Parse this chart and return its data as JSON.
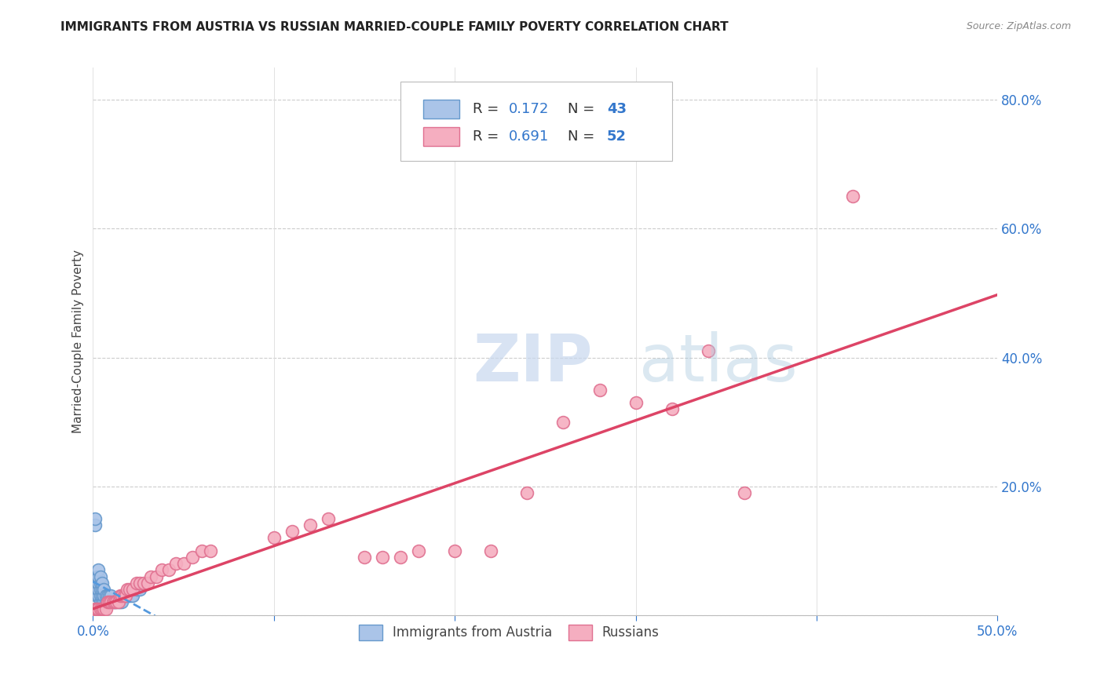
{
  "title": "IMMIGRANTS FROM AUSTRIA VS RUSSIAN MARRIED-COUPLE FAMILY POVERTY CORRELATION CHART",
  "source": "Source: ZipAtlas.com",
  "ylabel": "Married-Couple Family Poverty",
  "xlim": [
    0.0,
    0.5
  ],
  "ylim": [
    0.0,
    0.85
  ],
  "x_ticks": [
    0.0,
    0.1,
    0.2,
    0.3,
    0.4,
    0.5
  ],
  "x_tick_labels": [
    "0.0%",
    "",
    "",
    "",
    "",
    "50.0%"
  ],
  "y_tick_labels_right": [
    "",
    "20.0%",
    "40.0%",
    "60.0%",
    "80.0%"
  ],
  "y_ticks_right": [
    0.0,
    0.2,
    0.4,
    0.6,
    0.8
  ],
  "austria_color": "#aac4e8",
  "austria_edge_color": "#6699cc",
  "russian_color": "#f5aec0",
  "russian_edge_color": "#e07090",
  "austria_R": 0.172,
  "austria_N": 43,
  "russian_R": 0.691,
  "russian_N": 52,
  "trend_austria_color": "#5599dd",
  "trend_russian_color": "#dd4466",
  "legend_label_austria": "Immigrants from Austria",
  "legend_label_russian": "Russians",
  "austria_points": [
    [
      0.001,
      0.14
    ],
    [
      0.001,
      0.15
    ],
    [
      0.002,
      0.03
    ],
    [
      0.002,
      0.04
    ],
    [
      0.002,
      0.05
    ],
    [
      0.002,
      0.06
    ],
    [
      0.003,
      0.03
    ],
    [
      0.003,
      0.04
    ],
    [
      0.003,
      0.05
    ],
    [
      0.003,
      0.06
    ],
    [
      0.003,
      0.07
    ],
    [
      0.004,
      0.02
    ],
    [
      0.004,
      0.03
    ],
    [
      0.004,
      0.04
    ],
    [
      0.004,
      0.05
    ],
    [
      0.004,
      0.06
    ],
    [
      0.005,
      0.02
    ],
    [
      0.005,
      0.03
    ],
    [
      0.005,
      0.04
    ],
    [
      0.005,
      0.05
    ],
    [
      0.006,
      0.02
    ],
    [
      0.006,
      0.03
    ],
    [
      0.006,
      0.04
    ],
    [
      0.007,
      0.02
    ],
    [
      0.007,
      0.03
    ],
    [
      0.008,
      0.02
    ],
    [
      0.008,
      0.03
    ],
    [
      0.009,
      0.02
    ],
    [
      0.009,
      0.03
    ],
    [
      0.01,
      0.02
    ],
    [
      0.01,
      0.03
    ],
    [
      0.011,
      0.02
    ],
    [
      0.012,
      0.02
    ],
    [
      0.013,
      0.02
    ],
    [
      0.014,
      0.02
    ],
    [
      0.015,
      0.02
    ],
    [
      0.016,
      0.02
    ],
    [
      0.018,
      0.03
    ],
    [
      0.019,
      0.03
    ],
    [
      0.021,
      0.03
    ],
    [
      0.022,
      0.03
    ],
    [
      0.024,
      0.04
    ],
    [
      0.026,
      0.04
    ]
  ],
  "russian_points": [
    [
      0.001,
      0.01
    ],
    [
      0.002,
      0.01
    ],
    [
      0.003,
      0.01
    ],
    [
      0.004,
      0.01
    ],
    [
      0.005,
      0.01
    ],
    [
      0.006,
      0.01
    ],
    [
      0.007,
      0.01
    ],
    [
      0.008,
      0.02
    ],
    [
      0.009,
      0.02
    ],
    [
      0.01,
      0.02
    ],
    [
      0.011,
      0.02
    ],
    [
      0.012,
      0.02
    ],
    [
      0.013,
      0.02
    ],
    [
      0.014,
      0.02
    ],
    [
      0.015,
      0.03
    ],
    [
      0.016,
      0.03
    ],
    [
      0.017,
      0.03
    ],
    [
      0.018,
      0.03
    ],
    [
      0.019,
      0.04
    ],
    [
      0.02,
      0.04
    ],
    [
      0.022,
      0.04
    ],
    [
      0.024,
      0.05
    ],
    [
      0.026,
      0.05
    ],
    [
      0.028,
      0.05
    ],
    [
      0.03,
      0.05
    ],
    [
      0.032,
      0.06
    ],
    [
      0.035,
      0.06
    ],
    [
      0.038,
      0.07
    ],
    [
      0.042,
      0.07
    ],
    [
      0.046,
      0.08
    ],
    [
      0.05,
      0.08
    ],
    [
      0.055,
      0.09
    ],
    [
      0.06,
      0.1
    ],
    [
      0.065,
      0.1
    ],
    [
      0.1,
      0.12
    ],
    [
      0.11,
      0.13
    ],
    [
      0.12,
      0.14
    ],
    [
      0.13,
      0.15
    ],
    [
      0.15,
      0.09
    ],
    [
      0.16,
      0.09
    ],
    [
      0.17,
      0.09
    ],
    [
      0.18,
      0.1
    ],
    [
      0.2,
      0.1
    ],
    [
      0.22,
      0.1
    ],
    [
      0.24,
      0.19
    ],
    [
      0.26,
      0.3
    ],
    [
      0.28,
      0.35
    ],
    [
      0.3,
      0.33
    ],
    [
      0.32,
      0.32
    ],
    [
      0.34,
      0.41
    ],
    [
      0.36,
      0.19
    ],
    [
      0.42,
      0.65
    ]
  ]
}
